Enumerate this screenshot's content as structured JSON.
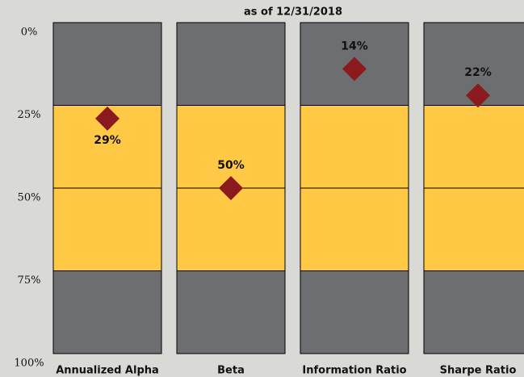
{
  "chart_data": {
    "type": "percentile_rank",
    "subtitle": "as of 12/31/2018",
    "categories": [
      "Annualized Alpha",
      "Beta",
      "Information Ratio",
      "Sharpe Ratio"
    ],
    "values": [
      29,
      50,
      14,
      22
    ],
    "value_labels": [
      "29%",
      "50%",
      "14%",
      "22%"
    ],
    "label_positions": [
      "below",
      "above",
      "above",
      "above"
    ],
    "ylim": [
      0,
      100
    ],
    "y_inverted": true,
    "yticks": [
      {
        "value": 0,
        "label": "0%"
      },
      {
        "value": 25,
        "label": "25%"
      },
      {
        "value": 50,
        "label": "50%"
      },
      {
        "value": 75,
        "label": "75%"
      },
      {
        "value": 100,
        "label": "100%"
      }
    ],
    "bands": [
      {
        "from": 0,
        "to": 25,
        "color": "#6d6e71"
      },
      {
        "from": 25,
        "to": 75,
        "color": "#ffc845"
      },
      {
        "from": 75,
        "to": 100,
        "color": "#6d6e71"
      }
    ],
    "marker_color": "#8b1a1e",
    "grid": true
  }
}
